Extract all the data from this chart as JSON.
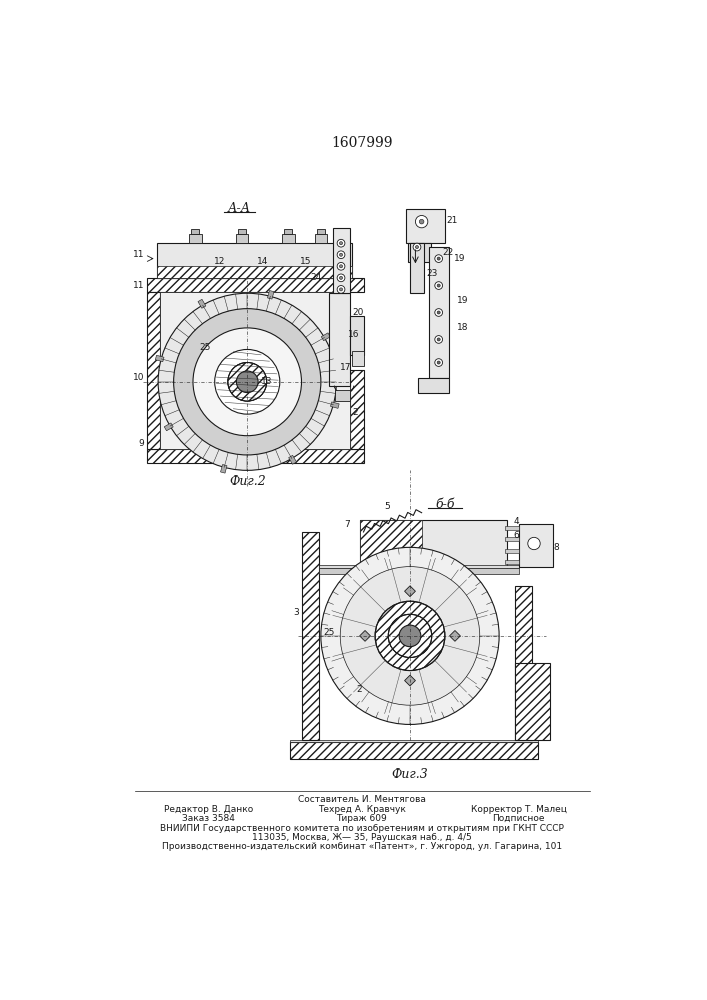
{
  "title": "1607999",
  "fig_label_A": "А-А",
  "fig_label_B": "б-б",
  "fig2_label": "Фиг.2",
  "fig3_label": "Фиг.3",
  "footer_line1": "Составитель И. Ментягова",
  "footer_line2a": "Редактор В. Данко",
  "footer_line2b": "Техред А. Кравчук",
  "footer_line2c": "Корректор Т. Малец",
  "footer_line3a": "Заказ 3584",
  "footer_line3b": "Тираж 609",
  "footer_line3c": "Подписное",
  "footer_line4": "ВНИИПИ Государственного комитета по изобретениям и открытиям при ГКНТ СССР",
  "footer_line5": "113035, Москва, Ж— 35, Раушская наб., д. 4/5",
  "footer_line6": "Производственно-издательский комбинат «Патент», г. Ужгород, ул. Гагарина, 101",
  "bg_color": "#ffffff",
  "line_color": "#1a1a1a"
}
